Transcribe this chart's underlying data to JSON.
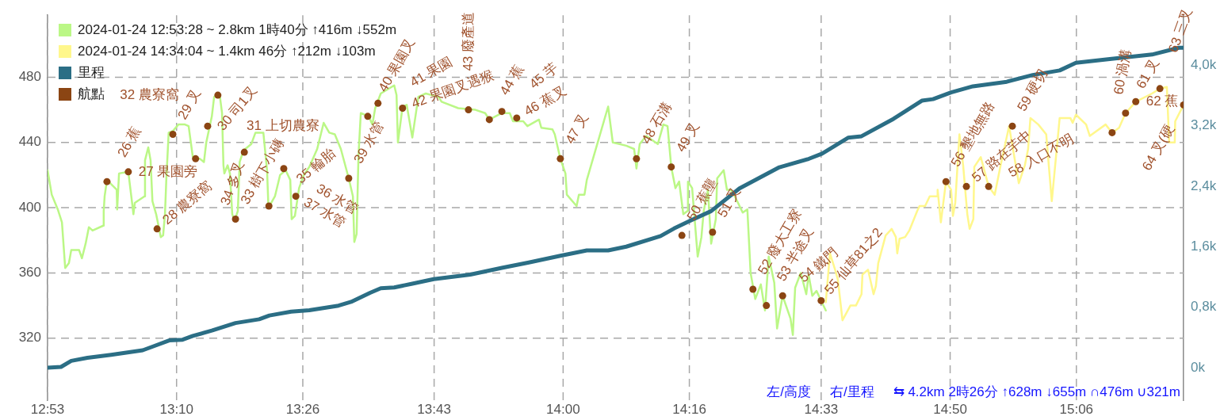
{
  "chart_data": {
    "type": "line",
    "xlim": [
      12.891,
      15.339
    ],
    "xticks": [
      {
        "value": 12.891,
        "label": "12:53"
      },
      {
        "value": 13.169,
        "label": "13:10"
      },
      {
        "value": 13.441,
        "label": "13:26"
      },
      {
        "value": 13.724,
        "label": "13:43"
      },
      {
        "value": 14.002,
        "label": "14:00"
      },
      {
        "value": 14.274,
        "label": "14:16"
      },
      {
        "value": 14.558,
        "label": "14:33"
      },
      {
        "value": 14.836,
        "label": "14:50"
      },
      {
        "value": 15.108,
        "label": "15:06"
      }
    ],
    "ylim": [
      282,
      518
    ],
    "yticks": [
      320,
      360,
      400,
      440,
      480
    ],
    "y2lim": [
      -0.43,
      4.66
    ],
    "y2ticks": [
      {
        "value": 0,
        "label": "0k"
      },
      {
        "value": 0.8,
        "label": "0,8k"
      },
      {
        "value": 1.6,
        "label": "1,6k"
      },
      {
        "value": 2.4,
        "label": "2,4k"
      },
      {
        "value": 3.2,
        "label": "3,2k"
      },
      {
        "value": 4,
        "label": "4,0k"
      }
    ],
    "grid": true,
    "legend": "top left",
    "series": [
      {
        "name": "2024-01-24 12:53:28 ~ 2.8km 1時40分 ↑416m ↓552m",
        "color": "#bbf786",
        "x": [
          12.891,
          12.9,
          12.913,
          12.922,
          12.929,
          12.937,
          12.942,
          12.959,
          12.965,
          12.973,
          12.98,
          12.988,
          13.011,
          13.012,
          13.014,
          13.019,
          13.04,
          13.041,
          13.045,
          13.065,
          13.074,
          13.076,
          13.079,
          13.1,
          13.101,
          13.108,
          13.113,
          13.117,
          13.125,
          13.135,
          13.14,
          13.144,
          13.147,
          13.152,
          13.161,
          13.173,
          13.187,
          13.195,
          13.204,
          13.219,
          13.228,
          13.233,
          13.245,
          13.25,
          13.262,
          13.267,
          13.27,
          13.272,
          13.279,
          13.284,
          13.289,
          13.294,
          13.301,
          13.305,
          13.313,
          13.33,
          13.339,
          13.356,
          13.364,
          13.367,
          13.381,
          13.392,
          13.404,
          13.414,
          13.417,
          13.424,
          13.433,
          13.443,
          13.455,
          13.472,
          13.486,
          13.498,
          13.51,
          13.523,
          13.54,
          13.549,
          13.552,
          13.557,
          13.561,
          13.566,
          13.583,
          13.591,
          13.597,
          13.609,
          13.638,
          13.643,
          13.646,
          13.656,
          13.665,
          13.677,
          13.69,
          13.706,
          13.733,
          13.74,
          13.776,
          13.813,
          13.834,
          13.843,
          13.87,
          13.887,
          13.894,
          13.916,
          13.925,
          13.95,
          13.955,
          13.979,
          13.984,
          13.996,
          14.007,
          14.01,
          14.031,
          14.036,
          14.048,
          14.053,
          14.099,
          14.109,
          14.138,
          14.155,
          14.16,
          14.167,
          14.181,
          14.206,
          14.218,
          14.227,
          14.235,
          14.244,
          14.252,
          14.261,
          14.27,
          14.271,
          14.28,
          14.292,
          14.3,
          14.305,
          14.314,
          14.321,
          14.331,
          14.334,
          14.348,
          14.355,
          14.363,
          14.372,
          14.389,
          14.399,
          14.406,
          14.416,
          14.428,
          14.437,
          14.445,
          14.457,
          14.463,
          14.475,
          14.492,
          14.497,
          14.502,
          14.514,
          14.526,
          14.531,
          14.539,
          14.548,
          14.558,
          14.568
        ],
        "values": [
          423,
          408,
          399,
          391,
          363,
          366,
          374,
          374,
          369,
          378,
          388,
          386,
          389,
          398,
          407,
          417,
          411,
          399,
          421,
          422,
          401,
          396,
          403,
          407,
          429,
          437,
          429,
          404,
          396,
          382,
          383,
          396,
          418,
          446,
          447,
          451,
          451,
          450,
          431,
          430,
          428,
          440,
          456,
          468,
          469,
          458,
          426,
          421,
          426,
          421,
          396,
          392,
          398,
          428,
          435,
          439,
          446,
          446,
          423,
          400,
          407,
          420,
          423,
          417,
          393,
          395,
          412,
          420,
          425,
          436,
          452,
          446,
          445,
          436,
          418,
          407,
          379,
          384,
          432,
          458,
          456,
          451,
          461,
          470,
          475,
          469,
          440,
          462,
          463,
          443,
          468,
          470,
          468,
          465,
          461,
          460,
          458,
          454,
          458,
          458,
          453,
          453,
          450,
          454,
          449,
          448,
          445,
          430,
          421,
          408,
          401,
          408,
          408,
          417,
          462,
          440,
          438,
          436,
          424,
          439,
          444,
          439,
          451,
          450,
          425,
          412,
          416,
          396,
          398,
          416,
          412,
          370,
          382,
          398,
          411,
          378,
          393,
          418,
          423,
          411,
          411,
          407,
          397,
          399,
          360,
          344,
          353,
          337,
          370,
          354,
          326,
          346,
          332,
          322,
          351,
          360,
          347,
          359,
          346,
          349,
          343,
          337
        ]
      },
      {
        "name": "2024-01-24 14:34:04 ~ 1.4km 46分 ↑212m ↓103m",
        "color": "#fff78c",
        "x": [
          14.568,
          14.577,
          14.587,
          14.594,
          14.604,
          14.621,
          14.633,
          14.645,
          14.647,
          14.659,
          14.671,
          14.676,
          14.681,
          14.697,
          14.71,
          14.719,
          14.722,
          14.727,
          14.739,
          14.748,
          14.765,
          14.77,
          14.782,
          14.792,
          14.808,
          14.809,
          14.816,
          14.827,
          14.838,
          14.842,
          14.847,
          14.856,
          14.864,
          14.873,
          14.878,
          14.886,
          14.888,
          14.902,
          14.919,
          14.932,
          14.944,
          14.963,
          14.984,
          14.997,
          15.004,
          15.009,
          15.026,
          15.043,
          15.055,
          15.072,
          15.095,
          15.1,
          15.107,
          15.129,
          15.137,
          15.171,
          15.185,
          15.2,
          15.214,
          15.236,
          15.271,
          15.288,
          15.303,
          15.308,
          15.32,
          15.321,
          15.339
        ],
        "values": [
          342,
          372,
          363,
          356,
          331,
          340,
          340,
          347,
          359,
          362,
          347,
          352,
          366,
          383,
          387,
          382,
          372,
          381,
          382,
          386,
          398,
          401,
          401,
          407,
          407,
          411,
          391,
          416,
          411,
          395,
          403,
          445,
          426,
          396,
          387,
          393,
          425,
          431,
          413,
          408,
          425,
          450,
          415,
          426,
          436,
          455,
          451,
          445,
          404,
          455,
          455,
          452,
          457,
          451,
          444,
          451,
          446,
          449,
          458,
          465,
          470,
          473,
          474,
          440,
          440,
          453,
          463
        ]
      },
      {
        "name": "里程",
        "axis": "y2",
        "color": "#2b6e85",
        "x": [
          12.891,
          12.92,
          12.942,
          12.977,
          13.028,
          13.096,
          13.118,
          13.153,
          13.182,
          13.204,
          13.245,
          13.296,
          13.347,
          13.369,
          13.416,
          13.455,
          13.518,
          13.545,
          13.586,
          13.609,
          13.638,
          13.677,
          13.723,
          13.802,
          13.87,
          13.928,
          13.996,
          14.053,
          14.099,
          14.138,
          14.212,
          14.241,
          14.275,
          14.321,
          14.382,
          14.468,
          14.531,
          14.56,
          14.616,
          14.645,
          14.714,
          14.775,
          14.799,
          14.838,
          14.885,
          14.958,
          15.014,
          15.072,
          15.107,
          15.18,
          15.271,
          15.329,
          15.339
        ],
        "values": [
          0,
          0.01,
          0.09,
          0.13,
          0.17,
          0.23,
          0.28,
          0.36,
          0.37,
          0.42,
          0.49,
          0.59,
          0.64,
          0.69,
          0.74,
          0.76,
          0.82,
          0.87,
          0.99,
          1.05,
          1.06,
          1.11,
          1.17,
          1.23,
          1.32,
          1.39,
          1.48,
          1.55,
          1.55,
          1.6,
          1.74,
          1.84,
          1.94,
          2.07,
          2.37,
          2.65,
          2.76,
          2.83,
          3.04,
          3.06,
          3.29,
          3.53,
          3.55,
          3.64,
          3.72,
          3.78,
          3.87,
          3.93,
          4.03,
          4.08,
          4.14,
          4.23,
          4.23
        ]
      },
      {
        "name": "航點",
        "type": "scatter",
        "marker": "circle",
        "color": "#8b4513",
        "x": [
          13.019,
          13.065,
          13.127,
          13.161,
          13.21,
          13.236,
          13.258,
          13.296,
          13.315,
          13.368,
          13.4,
          13.426,
          13.54,
          13.581,
          13.603,
          13.656,
          13.798,
          13.843,
          13.87,
          13.902,
          13.996,
          14.16,
          14.235,
          14.258,
          14.324,
          14.411,
          14.44,
          14.475,
          14.558,
          14.827,
          14.871,
          14.919,
          14.97,
          15.185,
          15.214,
          15.236,
          15.288,
          15.339
        ],
        "values": [
          416,
          422,
          387,
          445,
          430,
          450,
          469,
          393,
          434,
          401,
          424,
          407,
          418,
          456,
          464,
          461,
          460,
          454,
          459,
          455,
          430,
          430,
          425,
          383,
          385,
          350,
          340,
          346,
          343,
          416,
          413,
          413,
          450,
          446,
          458,
          465,
          473,
          463
        ]
      }
    ],
    "annotations": [
      {
        "text": "26 蕉",
        "x": 13.019,
        "y": 416
      },
      {
        "text": "27 果園旁",
        "x": 13.065,
        "y": 422
      },
      {
        "text": "28 農寮窩",
        "x": 13.127,
        "y": 387
      },
      {
        "text": "29 叉",
        "x": 13.161,
        "y": 445
      },
      {
        "text": "30 司1叉",
        "x": 13.21,
        "y": 430
      },
      {
        "text": "31 上切農寮",
        "x": 13.236,
        "y": 450
      },
      {
        "text": "32 農寮窩",
        "x": 13.258,
        "y": 469
      },
      {
        "text": "33 樹下小磚",
        "x": 13.296,
        "y": 393
      },
      {
        "text": "34 多叉",
        "x": 13.315,
        "y": 434
      },
      {
        "text": "35 輪胎",
        "x": 13.368,
        "y": 401
      },
      {
        "text": "36 水管",
        "x": 13.4,
        "y": 424
      },
      {
        "text": "37 水管",
        "x": 13.426,
        "y": 407
      },
      {
        "text": "39 水管",
        "x": 13.54,
        "y": 418
      },
      {
        "text": "40 果園叉",
        "x": 13.581,
        "y": 456
      },
      {
        "text": "41 果園",
        "x": 13.603,
        "y": 464
      },
      {
        "text": "42 果園叉遇猴",
        "x": 13.656,
        "y": 461
      },
      {
        "text": "43 廢產道",
        "x": 13.798,
        "y": 460
      },
      {
        "text": "44 蕉",
        "x": 13.843,
        "y": 454
      },
      {
        "text": "45 芋",
        "x": 13.87,
        "y": 459
      },
      {
        "text": "46 蕉叉",
        "x": 13.902,
        "y": 455
      },
      {
        "text": "47 叉",
        "x": 13.996,
        "y": 430
      },
      {
        "text": "48 石溝",
        "x": 14.16,
        "y": 430
      },
      {
        "text": "49 叉",
        "x": 14.235,
        "y": 425
      },
      {
        "text": "50 蕉壟",
        "x": 14.258,
        "y": 383
      },
      {
        "text": "51 叉",
        "x": 14.324,
        "y": 385
      },
      {
        "text": "52 廢大工寮",
        "x": 14.411,
        "y": 350
      },
      {
        "text": "53 半途叉",
        "x": 14.44,
        "y": 340
      },
      {
        "text": "54 鐵門",
        "x": 14.475,
        "y": 346
      },
      {
        "text": "55 仙草81之2",
        "x": 14.558,
        "y": 343
      },
      {
        "text": "56 墾地無路",
        "x": 14.827,
        "y": 416
      },
      {
        "text": "57 路在芋中",
        "x": 14.871,
        "y": 413
      },
      {
        "text": "58 入口不明",
        "x": 14.919,
        "y": 413
      },
      {
        "text": "59 硬切",
        "x": 14.97,
        "y": 450
      },
      {
        "text": "60 渦溝",
        "x": 15.185,
        "y": 446
      },
      {
        "text": "61 叉",
        "x": 15.214,
        "y": 458
      },
      {
        "text": "62 蕉",
        "x": 15.236,
        "y": 465
      },
      {
        "text": "63 三叉",
        "x": 15.288,
        "y": 473
      },
      {
        "text": "64 叉(硬",
        "x": 15.339,
        "y": 463
      },
      "左/高度",
      "右/里程",
      "⇆ 4.2km 2時26分 ↑628m ↓655m ∩476m ∪321m"
    ]
  }
}
